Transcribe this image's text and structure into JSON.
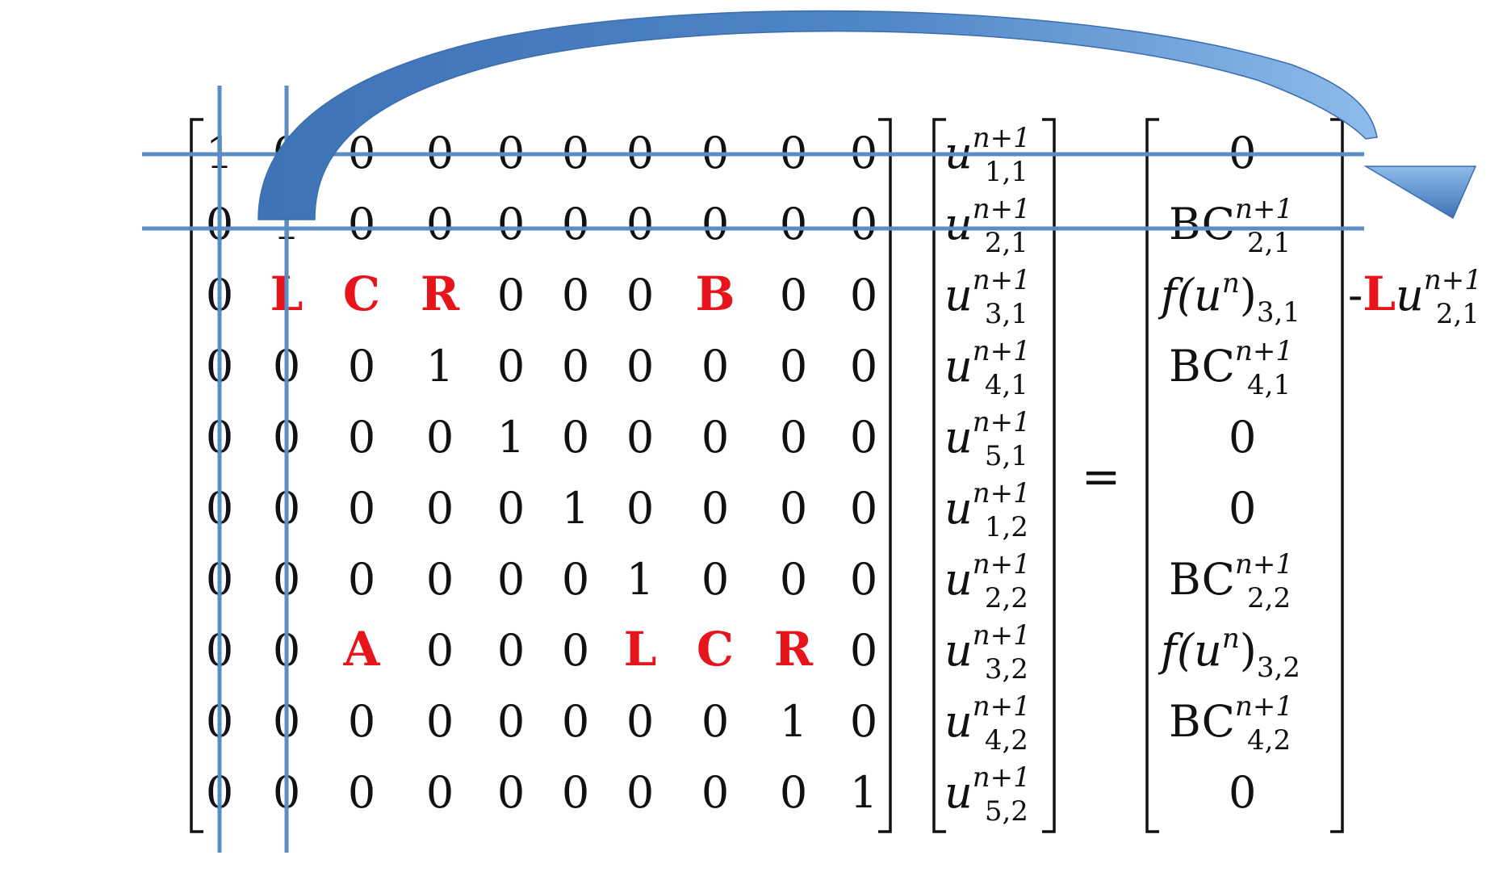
{
  "matrix": {
    "rows": [
      [
        "1",
        "0",
        "0",
        "0",
        "0",
        "0",
        "0",
        "0",
        "0",
        "0"
      ],
      [
        "0",
        "1",
        "0",
        "0",
        "0",
        "0",
        "0",
        "0",
        "0",
        "0"
      ],
      [
        "0",
        "L",
        "C",
        "R",
        "0",
        "0",
        "0",
        "B",
        "0",
        "0"
      ],
      [
        "0",
        "0",
        "0",
        "1",
        "0",
        "0",
        "0",
        "0",
        "0",
        "0"
      ],
      [
        "0",
        "0",
        "0",
        "0",
        "1",
        "0",
        "0",
        "0",
        "0",
        "0"
      ],
      [
        "0",
        "0",
        "0",
        "0",
        "0",
        "1",
        "0",
        "0",
        "0",
        "0"
      ],
      [
        "0",
        "0",
        "0",
        "0",
        "0",
        "0",
        "1",
        "0",
        "0",
        "0"
      ],
      [
        "0",
        "0",
        "A",
        "0",
        "0",
        "0",
        "L",
        "C",
        "R",
        "0"
      ],
      [
        "0",
        "0",
        "0",
        "0",
        "0",
        "0",
        "0",
        "0",
        "1",
        "0"
      ],
      [
        "0",
        "0",
        "0",
        "0",
        "0",
        "0",
        "0",
        "0",
        "0",
        "1"
      ]
    ],
    "highlight_symbols": [
      "L",
      "C",
      "R",
      "B",
      "A"
    ]
  },
  "unknown_vector": [
    {
      "base": "u",
      "sup": "n+1",
      "sub": "1,1"
    },
    {
      "base": "u",
      "sup": "n+1",
      "sub": "2,1"
    },
    {
      "base": "u",
      "sup": "n+1",
      "sub": "3,1"
    },
    {
      "base": "u",
      "sup": "n+1",
      "sub": "4,1"
    },
    {
      "base": "u",
      "sup": "n+1",
      "sub": "5,1"
    },
    {
      "base": "u",
      "sup": "n+1",
      "sub": "1,2"
    },
    {
      "base": "u",
      "sup": "n+1",
      "sub": "2,2"
    },
    {
      "base": "u",
      "sup": "n+1",
      "sub": "3,2"
    },
    {
      "base": "u",
      "sup": "n+1",
      "sub": "4,2"
    },
    {
      "base": "u",
      "sup": "n+1",
      "sub": "5,2"
    }
  ],
  "equals_sign": "=",
  "rhs_vector": [
    {
      "base": "0"
    },
    {
      "base": "BC",
      "sup": "n+1",
      "sub": "2,1"
    },
    {
      "base": "f(u",
      "basesup": "n",
      "tail": ")",
      "sub": "3,1"
    },
    {
      "base": "BC",
      "sup": "n+1",
      "sub": "4,1"
    },
    {
      "base": "0"
    },
    {
      "base": "0"
    },
    {
      "base": "BC",
      "sup": "n+1",
      "sub": "2,2"
    },
    {
      "base": "f(u",
      "basesup": "n",
      "tail": ")",
      "sub": "3,2"
    },
    {
      "base": "BC",
      "sup": "n+1",
      "sub": "4,2"
    },
    {
      "base": "0"
    }
  ],
  "correction_term": {
    "prefix": "-",
    "coef": "L",
    "base": "u",
    "sup": "n+1",
    "sub": "2,1"
  },
  "colors": {
    "text": "#111111",
    "highlight": "#e8141b",
    "lines": "#5b8cc4",
    "arrow_light": "#9cc3ea",
    "arrow_dark": "#3e73b5"
  }
}
